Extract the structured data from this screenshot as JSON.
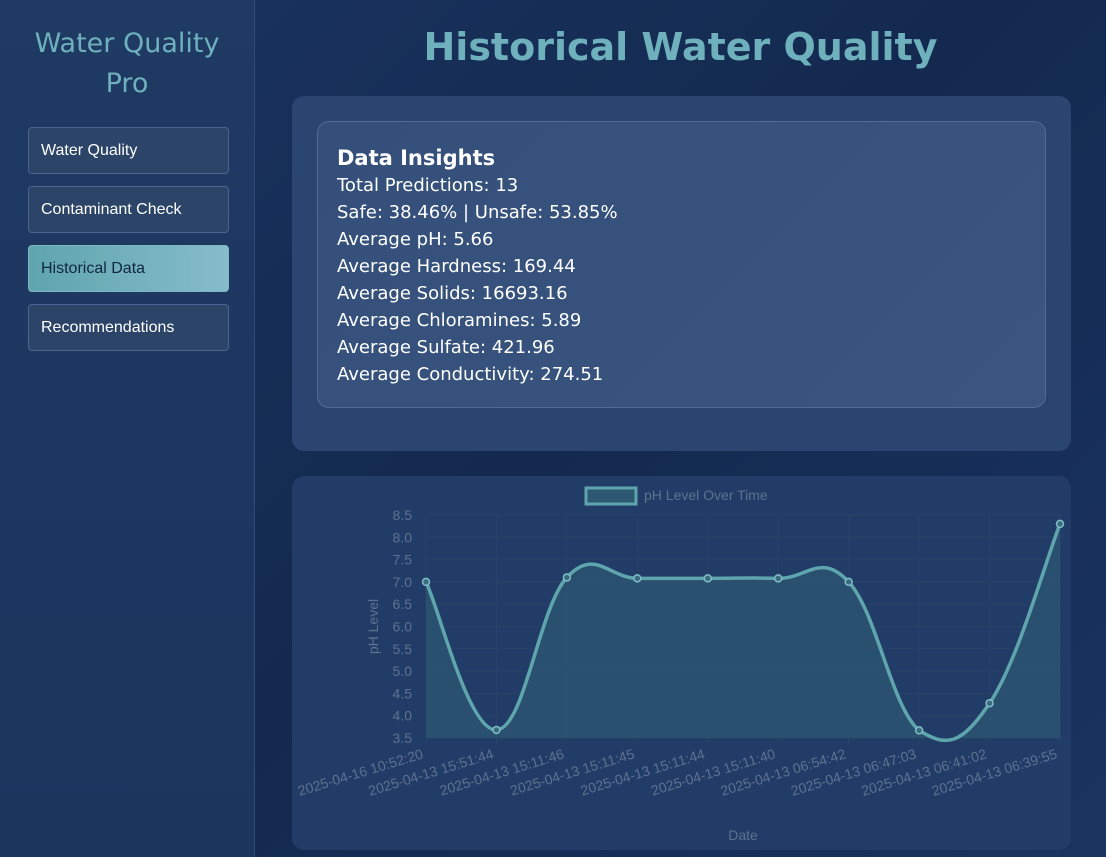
{
  "sidebar": {
    "brand": [
      "Water Quality",
      "Pro"
    ],
    "items": [
      {
        "label": "Water Quality",
        "active": false
      },
      {
        "label": "Contaminant Check",
        "active": false
      },
      {
        "label": "Historical Data",
        "active": true
      },
      {
        "label": "Recommendations",
        "active": false
      }
    ]
  },
  "page": {
    "title": "Historical Water Quality"
  },
  "insights": {
    "title": "Data Insights",
    "lines": [
      "Total Predictions: 13",
      "Safe: 38.46% | Unsafe: 53.85%",
      "Average pH: 5.66",
      "Average Hardness: 169.44",
      "Average Solids: 16693.16",
      "Average Chloramines: 5.89",
      "Average Sulfate: 421.96",
      "Average Conductivity: 274.51"
    ]
  },
  "colors": {
    "accent": "#6fb0bd",
    "line": "#5fa5ae",
    "fill": "#2e5774",
    "tick": "#5f7190",
    "grid": "#2b4266"
  },
  "chart_data": {
    "type": "line",
    "legend": "pH Level Over Time",
    "legend_position": "top-center",
    "xlabel": "Date",
    "ylabel": "pH Level",
    "ylim": [
      3.5,
      8.5
    ],
    "yticks": [
      8.5,
      8.0,
      7.5,
      7.0,
      6.5,
      6.0,
      5.5,
      5.0,
      4.5,
      4.0,
      3.5
    ],
    "grid": true,
    "categories": [
      "2025-04-16 10:52:20",
      "2025-04-13 15:51:44",
      "2025-04-13 15:11:46",
      "2025-04-13 15:11:45",
      "2025-04-13 15:11:44",
      "2025-04-13 15:11:40",
      "2025-04-13 06:54:42",
      "2025-04-13 06:47:03",
      "2025-04-13 06:41:02",
      "2025-04-13 06:39:55"
    ],
    "series": [
      {
        "name": "pH Level Over Time",
        "values": [
          7.0,
          3.68,
          7.1,
          7.08,
          7.08,
          7.08,
          7.0,
          3.67,
          4.28,
          8.3
        ]
      }
    ]
  }
}
